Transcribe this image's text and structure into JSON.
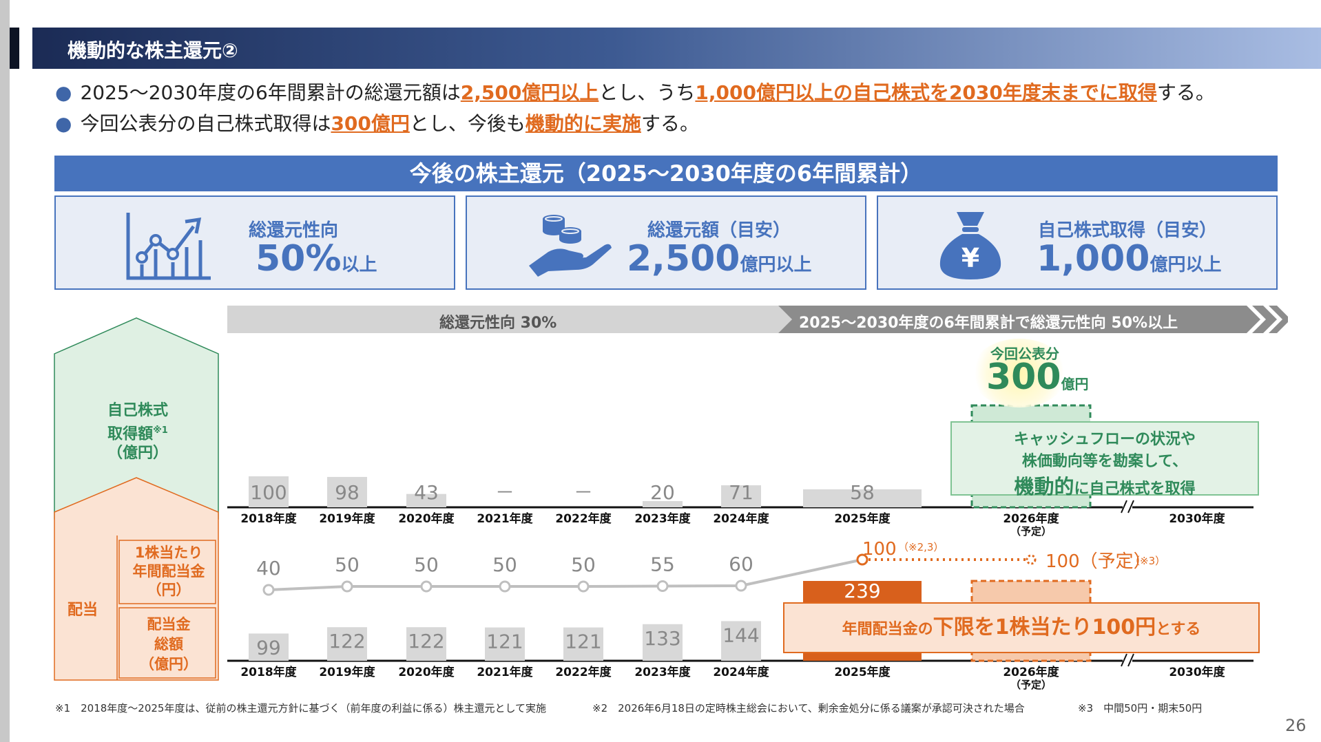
{
  "header": {
    "title": "機動的な株主還元②"
  },
  "bullets": [
    {
      "pre": "2025～2030年度の6年間累計の総還元額は",
      "hl1": "2,500億円以上",
      "mid": "とし、うち",
      "hl2": "1,000億円以上の自己株式を2030年度末までに取得",
      "post": "する。"
    },
    {
      "pre": "今回公表分の自己株式取得は",
      "hl1": "300億円",
      "mid": "とし、今後も",
      "hl2": "機動的に実施",
      "post": "する。"
    }
  ],
  "banner": "今後の株主還元（2025～2030年度の6年間累計）",
  "cards": [
    {
      "label": "総還元性向",
      "value": "50%",
      "unit": "以上",
      "icon": "chart-growth-icon"
    },
    {
      "label": "総還元額（目安）",
      "value": "2,500",
      "unit": "億円以上",
      "icon": "coins-hand-icon"
    },
    {
      "label": "自己株式取得（目安）",
      "value": "1,000",
      "unit": "億円以上",
      "icon": "money-bag-yen-icon"
    }
  ],
  "arrow_left": "総還元性向 30%",
  "arrow_right": "2025～2030年度の6年間累計で総還元性向 50%以上",
  "left_labels": {
    "buyback": "自己株式\n取得額",
    "buyback_note": "※1",
    "buyback_unit": "（億円）",
    "dividend": "配当",
    "dps": "1株当たり\n年間配当金\n（円）",
    "total_div": "配当金\n総額\n（億円）"
  },
  "announce": {
    "label": "今回公表分",
    "value": "300",
    "unit": "億円"
  },
  "callout1": {
    "line1": "キャッシュフローの状況や",
    "line2": "株価動向等を勘案して、",
    "hl": "機動的",
    "post": "に自己株式を取得"
  },
  "callout2": {
    "pre": "年間配当金の",
    "hl": "下限を1株当たり100円",
    "post": "とする"
  },
  "chart_data": {
    "type": "bar",
    "categories": [
      "2018年度",
      "2019年度",
      "2020年度",
      "2021年度",
      "2022年度",
      "2023年度",
      "2024年度",
      "2025年度",
      "2026年度",
      "2030年度"
    ],
    "year_sub": [
      "",
      "",
      "",
      "",
      "",
      "",
      "",
      "",
      "（予定）",
      ""
    ],
    "buyback_labels": [
      "100",
      "98",
      "43",
      "－",
      "－",
      "20",
      "71",
      "58",
      "",
      ""
    ],
    "buyback_values": [
      100,
      98,
      43,
      0,
      0,
      20,
      71,
      58,
      300,
      null
    ],
    "dps_labels": [
      "40",
      "50",
      "50",
      "50",
      "50",
      "55",
      "60",
      "100",
      "100（予定）",
      ""
    ],
    "dps_notes": [
      "",
      "",
      "",
      "",
      "",
      "",
      "",
      "（※2,3）",
      "（※3）",
      ""
    ],
    "dps_values": [
      40,
      50,
      50,
      50,
      50,
      55,
      60,
      100,
      100,
      null
    ],
    "total_div_labels": [
      "99",
      "122",
      "122",
      "121",
      "121",
      "133",
      "144",
      "239",
      "",
      ""
    ],
    "total_div_values": [
      99,
      122,
      122,
      121,
      121,
      133,
      144,
      239,
      null,
      null
    ]
  },
  "footnotes": [
    "※1　2018年度～2025年度は、従前の株主還元方針に基づく（前年度の利益に係る）株主還元として実施",
    "※2　2026年6月18日の定時株主総会において、剰余金処分に係る議案が承認可決された場合",
    "※3　中間50円・期末50円"
  ],
  "page_number": "26",
  "colors": {
    "accent_blue": "#4773bd",
    "orange": "#e06a1f",
    "green": "#2f8a5a"
  }
}
